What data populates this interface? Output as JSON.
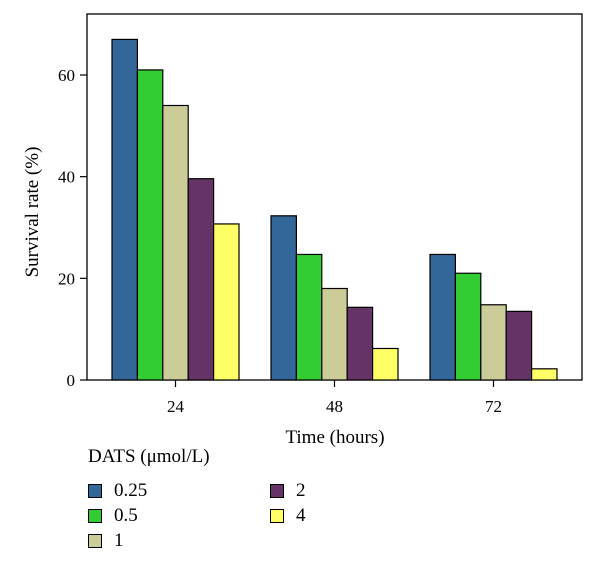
{
  "chart_data": {
    "type": "bar",
    "title": "",
    "xlabel": "Time (hours)",
    "ylabel": "Survival rate (%)",
    "categories": [
      "24",
      "48",
      "72"
    ],
    "ylim": [
      0,
      72
    ],
    "yticks": [
      0,
      20,
      40,
      60
    ],
    "grid": false,
    "legend_position": "bottom-left",
    "legend_title": "DATS (μmol/L)",
    "series": [
      {
        "name": "0.25",
        "color": "#336699",
        "values": [
          67,
          32.3,
          24.7
        ]
      },
      {
        "name": "0.5",
        "color": "#33cc33",
        "values": [
          61,
          24.7,
          21
        ]
      },
      {
        "name": "1",
        "color": "#cccc99",
        "values": [
          54,
          18,
          14.8
        ]
      },
      {
        "name": "2",
        "color": "#663366",
        "values": [
          39.6,
          14.3,
          13.5
        ]
      },
      {
        "name": "4",
        "color": "#ffff66",
        "values": [
          30.7,
          6.2,
          2.2
        ]
      }
    ]
  }
}
